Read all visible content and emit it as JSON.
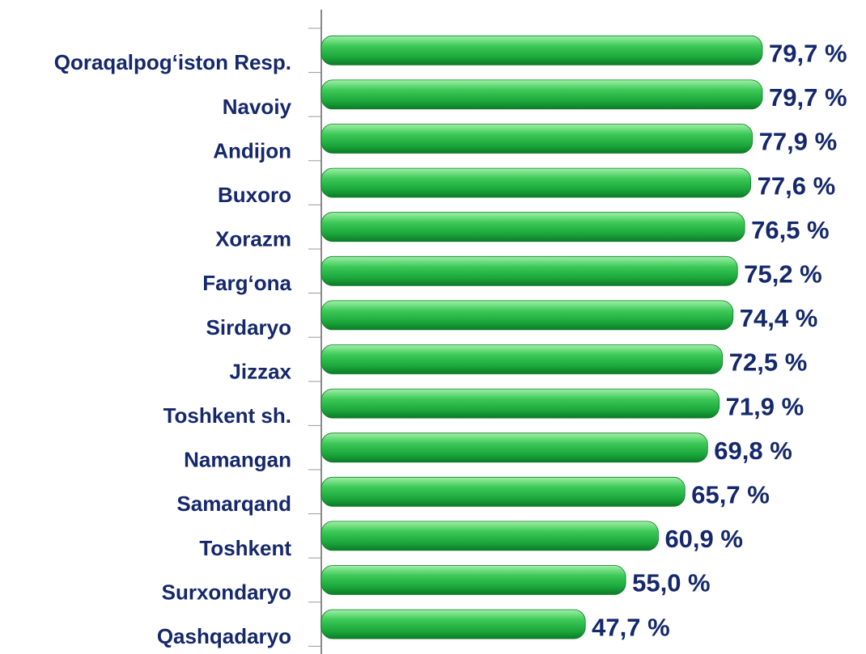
{
  "chart_data": {
    "type": "bar",
    "orientation": "horizontal",
    "color": "#1fae3f",
    "categories": [
      "Qoraqalpog‘iston Resp.",
      "Navoiy",
      "Andijon",
      "Buxoro",
      "Xorazm",
      "Farg‘ona",
      "Sirdaryo",
      "Jizzax",
      "Toshkent sh.",
      "Namangan",
      "Samarqand",
      "Toshkent",
      "Surxondaryo",
      "Qashqadaryo"
    ],
    "values": [
      79.7,
      79.7,
      77.9,
      77.6,
      76.5,
      75.2,
      74.4,
      72.5,
      71.9,
      69.8,
      65.7,
      60.9,
      55.0,
      47.7
    ],
    "value_labels": [
      "79,7 %",
      "79,7 %",
      "77,9 %",
      "77,6 %",
      "76,5 %",
      "75,2 %",
      "74,4 %",
      "72,5 %",
      "71,9 %",
      "69,8 %",
      "65,7 %",
      "60,9 %",
      "55,0 %",
      "47,7 %"
    ]
  }
}
